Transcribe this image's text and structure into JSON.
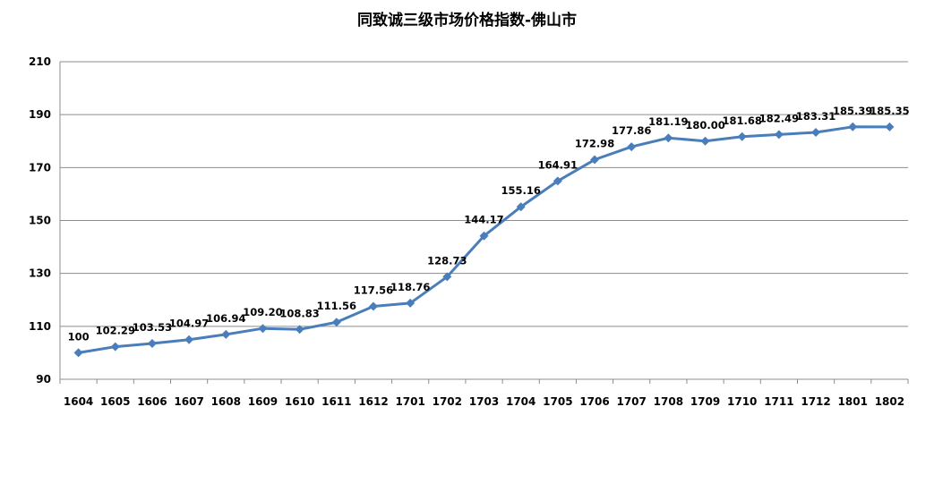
{
  "chart_data": {
    "type": "line",
    "title": "同致诚三级市场价格指数-佛山市",
    "xlabel": "",
    "ylabel": "",
    "categories": [
      "1604",
      "1605",
      "1606",
      "1607",
      "1608",
      "1609",
      "1610",
      "1611",
      "1612",
      "1701",
      "1702",
      "1703",
      "1704",
      "1705",
      "1706",
      "1707",
      "1708",
      "1709",
      "1710",
      "1711",
      "1712",
      "1801",
      "1802"
    ],
    "series": [
      {
        "values": [
          100,
          102.29,
          103.53,
          104.97,
          106.94,
          109.2,
          108.83,
          111.56,
          117.56,
          118.76,
          128.73,
          144.17,
          155.16,
          164.91,
          172.98,
          177.86,
          181.19,
          180.0,
          181.68,
          182.49,
          183.31,
          185.39,
          185.35
        ],
        "labels": [
          "100",
          "102.29",
          "103.53",
          "104.97",
          "106.94",
          "109.20",
          "108.83",
          "111.56",
          "117.56",
          "118.76",
          "128.73",
          "144.17",
          "155.16",
          "164.91",
          "172.98",
          "177.86",
          "181.19",
          "180.00",
          "181.68",
          "182.49",
          "183.31",
          "185.39",
          "185.35"
        ],
        "color": "#4A7EBB"
      }
    ],
    "ylim": [
      90,
      210
    ],
    "yticks": [
      "90",
      "110",
      "130",
      "150",
      "170",
      "190",
      "210"
    ],
    "grid": true,
    "legend": "none"
  }
}
